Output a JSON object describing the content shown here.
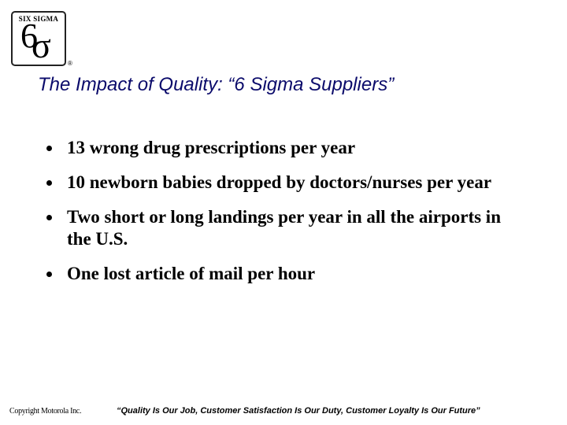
{
  "logo": {
    "label": "SIX SIGMA",
    "digit": "6",
    "symbol": "σ",
    "registered": "®"
  },
  "title": "The Impact of Quality: “6 Sigma Suppliers”",
  "bullets": [
    "13 wrong drug prescriptions per year",
    "10 newborn babies dropped by doctors/nurses per year",
    "Two short or long landings per year in all the airports in the U.S.",
    "One lost article of mail per hour"
  ],
  "footer": {
    "copyright": "Copyright Motorola Inc.",
    "motto": "“Quality Is Our Job, Customer Satisfaction Is Our Duty, Customer Loyalty Is Our Future”"
  }
}
